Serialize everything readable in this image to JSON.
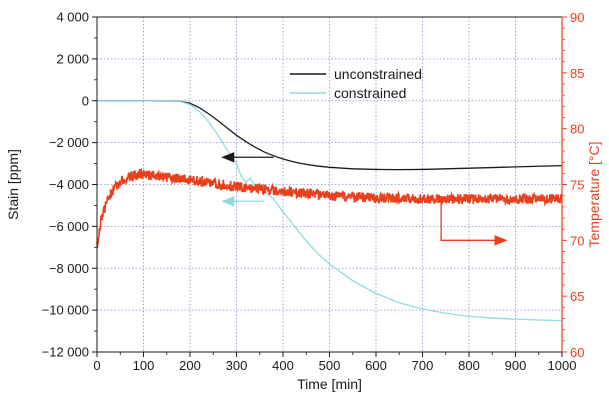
{
  "chart_data": {
    "type": "line",
    "xlabel": "Time [min]",
    "ylabel_left": "Stain [ppm]",
    "ylabel_right": "Temperature [°C]",
    "xlim": [
      0,
      1000
    ],
    "ylim_left": [
      -12000,
      4000
    ],
    "ylim_right": [
      60,
      90
    ],
    "x_ticks": [
      0,
      100,
      200,
      300,
      400,
      500,
      600,
      700,
      800,
      900,
      1000
    ],
    "x_tick_labels": [
      "0",
      "100",
      "200",
      "300",
      "400",
      "500",
      "600",
      "700",
      "800",
      "900",
      "1000"
    ],
    "y_left_ticks": [
      4000,
      2000,
      0,
      -2000,
      -4000,
      -6000,
      -8000,
      -10000,
      -12000
    ],
    "y_left_tick_labels": [
      "4 000",
      "2 000",
      "0",
      "−2 000",
      "−4 000",
      "−6 000",
      "−8 000",
      "−10 000",
      "−12 000"
    ],
    "y_right_ticks": [
      90,
      85,
      80,
      75,
      70,
      65,
      60
    ],
    "y_right_tick_labels": [
      "90",
      "85",
      "80",
      "75",
      "70",
      "65",
      "60"
    ],
    "grid": true,
    "legend_position": "top-center",
    "series": [
      {
        "name": "unconstrained",
        "axis": "left",
        "color": "#1a1a1a",
        "x": [
          0,
          100,
          180,
          200,
          220,
          240,
          260,
          280,
          300,
          320,
          340,
          360,
          380,
          400,
          425,
          450,
          475,
          500,
          550,
          600,
          650,
          700,
          750,
          800,
          850,
          900,
          950,
          1000
        ],
        "y": [
          0,
          0,
          -30,
          -120,
          -330,
          -620,
          -950,
          -1300,
          -1650,
          -1950,
          -2220,
          -2450,
          -2630,
          -2780,
          -2930,
          -3040,
          -3120,
          -3180,
          -3250,
          -3280,
          -3290,
          -3280,
          -3250,
          -3220,
          -3190,
          -3160,
          -3130,
          -3100
        ]
      },
      {
        "name": "constrained",
        "axis": "left",
        "color": "#8fdcdc",
        "x": [
          0,
          100,
          180,
          200,
          220,
          240,
          260,
          280,
          300,
          310,
          320,
          330,
          340,
          350,
          360,
          380,
          400,
          425,
          450,
          475,
          500,
          550,
          600,
          650,
          700,
          750,
          800,
          850,
          900,
          950,
          1000
        ],
        "y": [
          0,
          0,
          -40,
          -180,
          -500,
          -1000,
          -1650,
          -2350,
          -3000,
          -3600,
          -3900,
          -3700,
          -4100,
          -3950,
          -4300,
          -4700,
          -5300,
          -6000,
          -6700,
          -7300,
          -7800,
          -8600,
          -9200,
          -9650,
          -9950,
          -10150,
          -10300,
          -10380,
          -10430,
          -10470,
          -10500
        ]
      },
      {
        "name": "temperature",
        "axis": "right",
        "color": "#e8401c",
        "x": [
          0,
          5,
          10,
          20,
          30,
          40,
          50,
          60,
          70,
          80,
          90,
          100,
          120,
          140,
          160,
          180,
          200,
          250,
          300,
          350,
          400,
          450,
          500,
          550,
          600,
          650,
          700,
          750,
          800,
          850,
          900,
          950,
          1000
        ],
        "y": [
          69.5,
          71.0,
          72.0,
          73.3,
          74.2,
          74.8,
          75.2,
          75.5,
          75.7,
          75.8,
          75.9,
          75.9,
          75.8,
          75.7,
          75.6,
          75.5,
          75.4,
          75.1,
          74.8,
          74.6,
          74.4,
          74.2,
          74.0,
          73.9,
          73.8,
          73.8,
          73.7,
          73.7,
          73.7,
          73.7,
          73.7,
          73.7,
          73.7
        ]
      }
    ],
    "legend": [
      {
        "label": "unconstrained",
        "color": "#1a1a1a"
      },
      {
        "label": "constrained",
        "color": "#8fdcdc"
      }
    ],
    "annotations": [
      {
        "type": "arrow",
        "color": "#1a1a1a",
        "from": [
          380,
          -2700
        ],
        "to": [
          270,
          -2700
        ],
        "axis": "left"
      },
      {
        "type": "arrow",
        "color": "#8fdcdc",
        "from": [
          360,
          -4800
        ],
        "to": [
          270,
          -4800
        ],
        "axis": "left"
      },
      {
        "type": "arrow",
        "color": "#e8401c",
        "path": [
          [
            740,
            73.7
          ],
          [
            740,
            70
          ],
          [
            880,
            70
          ]
        ],
        "axis": "right"
      }
    ]
  }
}
